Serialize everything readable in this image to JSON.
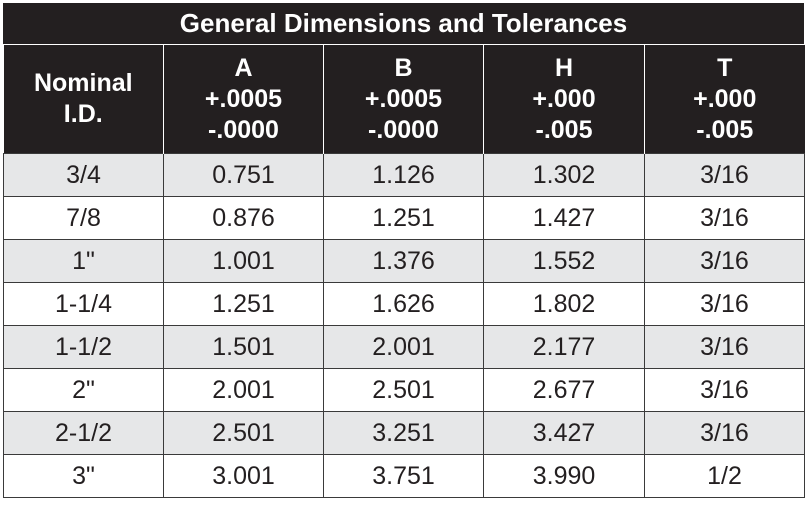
{
  "title": "General Dimensions and Tolerances",
  "columns": [
    {
      "lines": [
        "Nominal",
        "I.D."
      ]
    },
    {
      "lines": [
        "A",
        "+.0005",
        "-.0000"
      ]
    },
    {
      "lines": [
        "B",
        "+.0005",
        "-.0000"
      ]
    },
    {
      "lines": [
        "H",
        "+.000",
        "-.005"
      ]
    },
    {
      "lines": [
        "T",
        "+.000",
        "-.005"
      ]
    }
  ],
  "rows": [
    [
      "3/4",
      "0.751",
      "1.126",
      "1.302",
      "3/16"
    ],
    [
      "7/8",
      "0.876",
      "1.251",
      "1.427",
      "3/16"
    ],
    [
      "1\"",
      "1.001",
      "1.376",
      "1.552",
      "3/16"
    ],
    [
      "1-1/4",
      "1.251",
      "1.626",
      "1.802",
      "3/16"
    ],
    [
      "1-1/2",
      "1.501",
      "2.001",
      "2.177",
      "3/16"
    ],
    [
      "2\"",
      "2.001",
      "2.501",
      "2.677",
      "3/16"
    ],
    [
      "2-1/2",
      "2.501",
      "3.251",
      "3.427",
      "3/16"
    ],
    [
      "3\"",
      "3.001",
      "3.751",
      "3.990",
      "1/2"
    ]
  ],
  "colors": {
    "header_bg": "#231f20",
    "header_text": "#ffffff",
    "stripe_bg": "#e6e7e8",
    "row_bg": "#ffffff",
    "body_text": "#231f20"
  }
}
